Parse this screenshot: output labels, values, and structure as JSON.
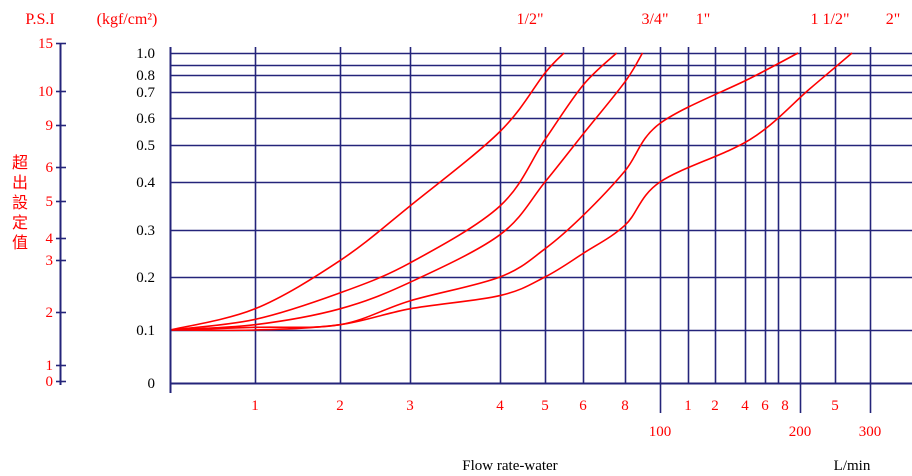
{
  "colors": {
    "grid": "#24247a",
    "curve": "#ff0000",
    "text_red": "#ff0000",
    "text_black": "#000000"
  },
  "chart_data": {
    "type": "line",
    "title": "",
    "psi_header": "P.S.I",
    "kgf_header": "(kgf/cm²)",
    "vertical_label": "超出設定值",
    "psi_ticks": [
      "15",
      "10",
      "9",
      "6",
      "5",
      "4",
      "3",
      "2",
      "1",
      "0"
    ],
    "kgf_ticks": [
      "1.0",
      "0.8",
      "0.7",
      "0.6",
      "0.5",
      "0.4",
      "0.3",
      "0.2",
      "0.1",
      "0"
    ],
    "kgf_grid_extra": [
      0.9
    ],
    "x_ticks_row1": [
      "1",
      "2",
      "3",
      "4",
      "5",
      "6",
      "8",
      "1",
      "2",
      "4",
      "6",
      "8",
      "5"
    ],
    "x_ticks_row1_values": [
      1,
      2,
      3,
      4,
      5,
      6,
      8,
      100,
      200,
      400,
      600,
      800,
      500
    ],
    "x_ticks_row2": [
      "100",
      "200",
      "300"
    ],
    "xlabel": "Flow rate-water",
    "xunit": "L/min",
    "ylim": [
      0,
      1.0
    ],
    "series": [
      {
        "name": "1/2\"",
        "points": [
          [
            0,
            0.1
          ],
          [
            1,
            0.14
          ],
          [
            2,
            0.235
          ],
          [
            3,
            0.35
          ],
          [
            4,
            0.55
          ],
          [
            5,
            0.82
          ],
          [
            5.5,
            1.0
          ]
        ]
      },
      {
        "name": "3/4\"",
        "points": [
          [
            0,
            0.1
          ],
          [
            1,
            0.12
          ],
          [
            2,
            0.17
          ],
          [
            3,
            0.23
          ],
          [
            4,
            0.35
          ],
          [
            5,
            0.52
          ],
          [
            6,
            0.74
          ],
          [
            6.8,
            1.0
          ]
        ]
      },
      {
        "name": "1\"",
        "points": [
          [
            0,
            0.1
          ],
          [
            1,
            0.11
          ],
          [
            2,
            0.14
          ],
          [
            3,
            0.19
          ],
          [
            4,
            0.29
          ],
          [
            5,
            0.4
          ],
          [
            6,
            0.54
          ],
          [
            7,
            0.76
          ],
          [
            7.5,
            1.0
          ]
        ]
      },
      {
        "name": "1 1/2\"",
        "points": [
          [
            0,
            0.1
          ],
          [
            1,
            0.105
          ],
          [
            2,
            0.11
          ],
          [
            3,
            0.155
          ],
          [
            4,
            0.2
          ],
          [
            5,
            0.26
          ],
          [
            6,
            0.33
          ],
          [
            7,
            0.43
          ],
          [
            8,
            0.58
          ],
          [
            9,
            0.78
          ],
          [
            9.8,
            1.0
          ]
        ]
      },
      {
        "name": "2\"",
        "points": [
          [
            0,
            0.1
          ],
          [
            1,
            0.1
          ],
          [
            2,
            0.11
          ],
          [
            3,
            0.14
          ],
          [
            4,
            0.165
          ],
          [
            5,
            0.2
          ],
          [
            6,
            0.25
          ],
          [
            7,
            0.31
          ],
          [
            8,
            0.4
          ],
          [
            9,
            0.52
          ],
          [
            10,
            0.72
          ],
          [
            10.7,
            1.0
          ]
        ]
      }
    ]
  }
}
